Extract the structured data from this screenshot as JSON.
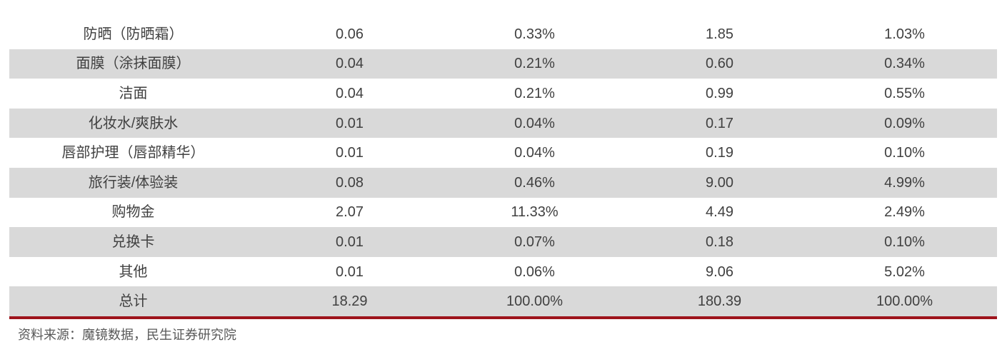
{
  "table": {
    "rows": [
      [
        "防晒（防晒霜）",
        "0.06",
        "0.33%",
        "1.85",
        "1.03%"
      ],
      [
        "面膜（涂抹面膜）",
        "0.04",
        "0.21%",
        "0.60",
        "0.34%"
      ],
      [
        "洁面",
        "0.04",
        "0.21%",
        "0.99",
        "0.55%"
      ],
      [
        "化妆水/爽肤水",
        "0.01",
        "0.04%",
        "0.17",
        "0.09%"
      ],
      [
        "唇部护理（唇部精华）",
        "0.01",
        "0.04%",
        "0.19",
        "0.10%"
      ],
      [
        "旅行装/体验装",
        "0.08",
        "0.46%",
        "9.00",
        "4.99%"
      ],
      [
        "购物金",
        "2.07",
        "11.33%",
        "4.49",
        "2.49%"
      ],
      [
        "兑换卡",
        "0.01",
        "0.07%",
        "0.18",
        "0.10%"
      ],
      [
        "其他",
        "0.01",
        "0.06%",
        "9.06",
        "5.02%"
      ],
      [
        "总计",
        "18.29",
        "100.00%",
        "180.39",
        "100.00%"
      ]
    ]
  },
  "footer": {
    "source": "资料来源：魔镜数据，民生证券研究院"
  },
  "colors": {
    "stripe_gray": "#d9d9d9",
    "divider_red": "#9e141c",
    "table_text": "#404040",
    "footer_text": "#595959"
  }
}
